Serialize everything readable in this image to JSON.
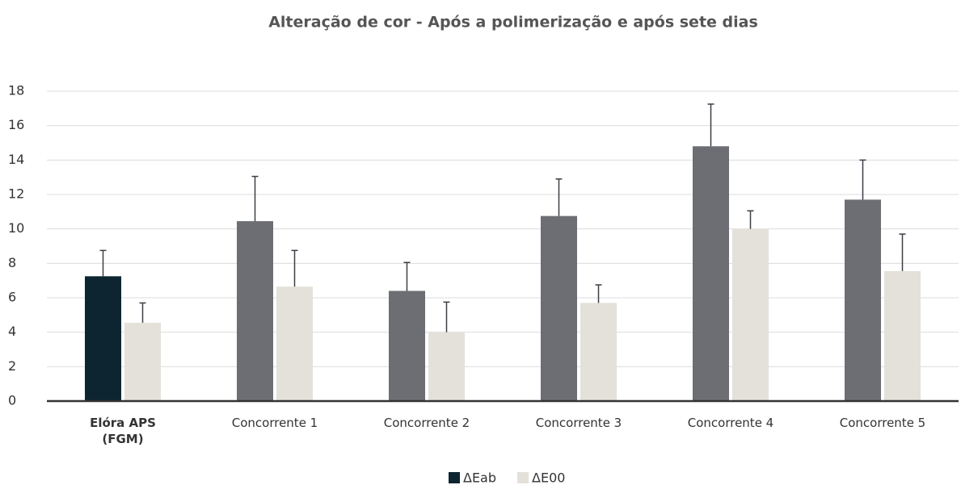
{
  "chart_data": {
    "type": "bar",
    "title": "Alteração de cor - Após a polimerização e após sete dias",
    "categories": [
      "Elóra APS (FGM)",
      "Concorrente 1",
      "Concorrente 2",
      "Concorrente 3",
      "Concorrente 4",
      "Concorrente 5"
    ],
    "series": [
      {
        "name": "ΔEab",
        "color": "#0d2530",
        "colors": [
          "#0d2530",
          "#6d6e73",
          "#6d6e73",
          "#6d6e73",
          "#6d6e73",
          "#6d6e73"
        ],
        "values": [
          7.25,
          10.45,
          6.4,
          10.75,
          14.8,
          11.7
        ],
        "errors": [
          1.5,
          2.6,
          1.65,
          2.15,
          2.45,
          2.3
        ]
      },
      {
        "name": "ΔE00",
        "color": "#e4e1da",
        "values": [
          4.55,
          6.65,
          4.0,
          5.7,
          10.0,
          7.55
        ],
        "errors": [
          1.15,
          2.1,
          1.75,
          1.05,
          1.05,
          2.15
        ]
      }
    ],
    "ylim": [
      0,
      18
    ],
    "yticks": [
      0,
      2,
      4,
      6,
      8,
      10,
      12,
      14,
      16,
      18
    ],
    "grid": true,
    "legend": "bottom"
  }
}
